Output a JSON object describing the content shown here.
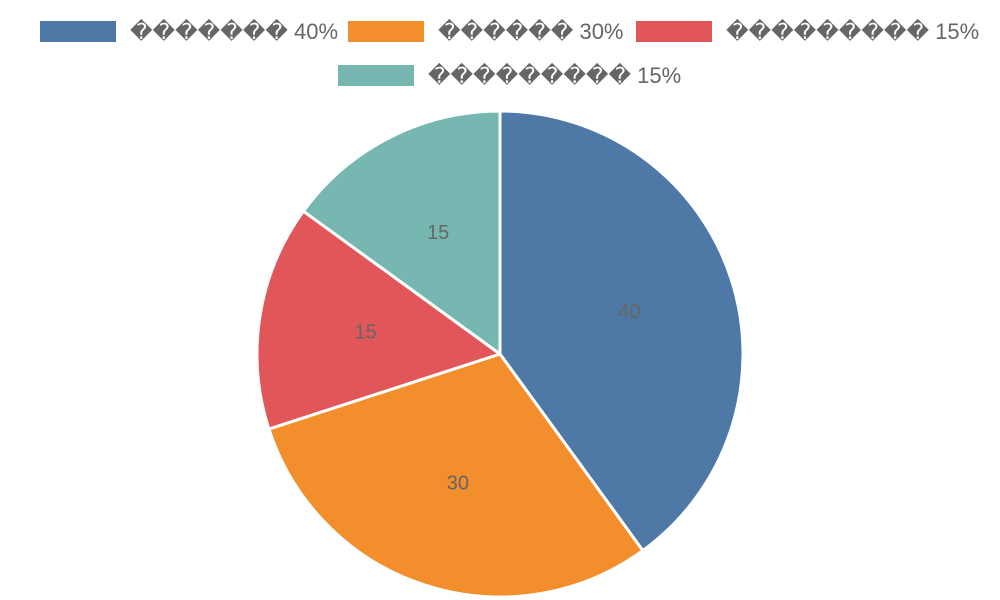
{
  "chart_data": {
    "type": "pie",
    "categories": [
      "������� 40%",
      "������ 30%",
      "��������� 15%",
      "��������� 15%"
    ],
    "values": [
      40,
      30,
      15,
      15
    ],
    "data_labels": [
      "40",
      "30",
      "15",
      "15"
    ],
    "colors": [
      "#4e79a7",
      "#f28e2b",
      "#e15759",
      "#76b7b2"
    ],
    "slice_border_color": "#ffffff",
    "legend_position": "top",
    "start_angle": "12 o'clock",
    "direction": "clockwise"
  }
}
